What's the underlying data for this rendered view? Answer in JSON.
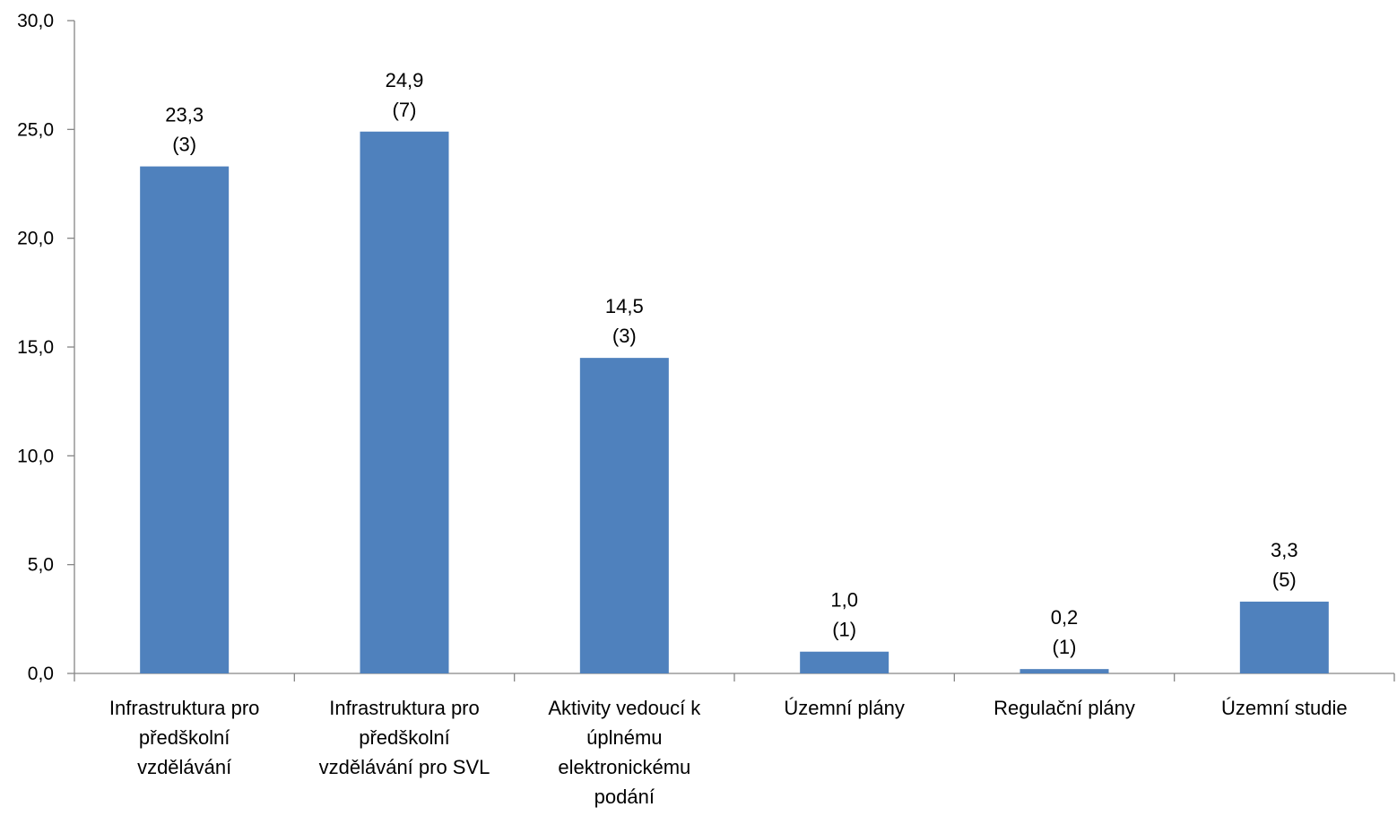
{
  "chart_data": {
    "type": "bar",
    "categories": [
      [
        "Infrastruktura pro",
        "předškolní",
        "vzdělávání"
      ],
      [
        "Infrastruktura pro",
        "předškolní",
        "vzdělávání pro SVL"
      ],
      [
        "Aktivity vedoucí k",
        "úplnému",
        "elektronickému",
        "podání"
      ],
      [
        "Územní plány"
      ],
      [
        "Regulační plány"
      ],
      [
        "Územní studie"
      ]
    ],
    "values": [
      23.3,
      24.9,
      14.5,
      1.0,
      0.2,
      3.3
    ],
    "value_labels": [
      "23,3",
      "24,9",
      "14,5",
      "1,0",
      "0,2",
      "3,3"
    ],
    "count_labels": [
      "(3)",
      "(7)",
      "(3)",
      "(1)",
      "(1)",
      "(5)"
    ],
    "ylim": [
      0,
      30
    ],
    "yticks": [
      0,
      5,
      10,
      15,
      20,
      25,
      30
    ],
    "ytick_labels": [
      "0,0",
      "5,0",
      "10,0",
      "15,0",
      "20,0",
      "25,0",
      "30,0"
    ],
    "title": "",
    "xlabel": "",
    "ylabel": "",
    "grid": false,
    "bar_color": "#4F81BD",
    "axis_color": "#868686"
  }
}
